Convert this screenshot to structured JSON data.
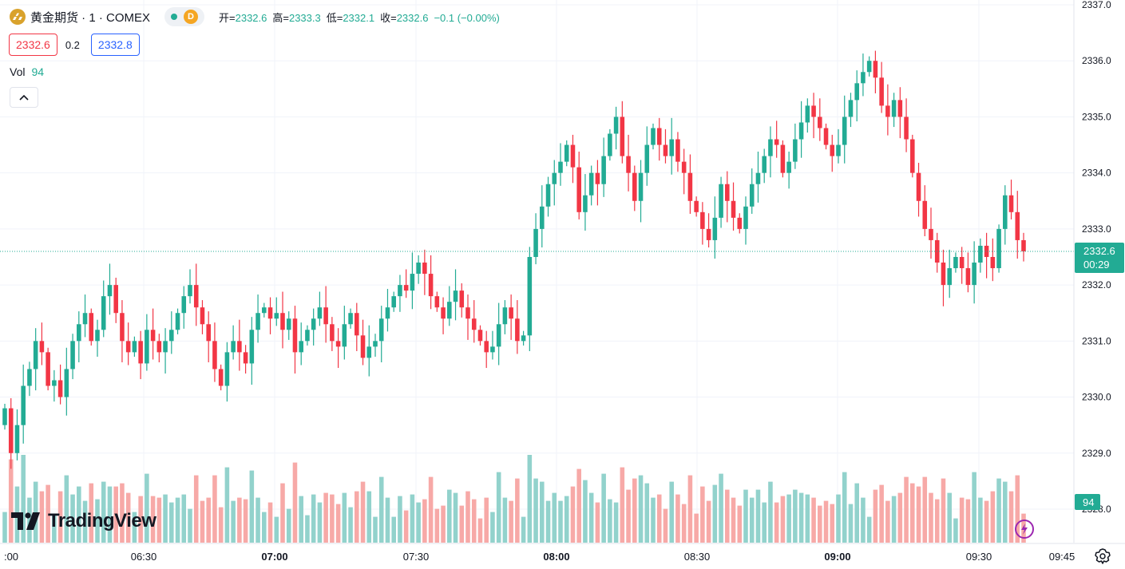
{
  "header": {
    "symbol_title": "黄金期货 · 1 · COMEX",
    "interval_badge": "D",
    "ohlc": [
      {
        "label": "开=",
        "value": "2332.6"
      },
      {
        "label": "高=",
        "value": "2333.3"
      },
      {
        "label": "低=",
        "value": "2332.1"
      },
      {
        "label": "收=",
        "value": "2332.6"
      },
      {
        "label": "",
        "value": "−0.1 (−0.00%)"
      }
    ]
  },
  "prices": {
    "bid": "2332.6",
    "spread": "0.2",
    "ask": "2332.8"
  },
  "volume_legend": {
    "label": "Vol",
    "value": "94"
  },
  "branding": {
    "name": "TradingView"
  },
  "colors": {
    "up": "#22ab94",
    "down": "#f23645",
    "up_volume": "#92d2cc",
    "down_volume": "#f7a9a7",
    "grid": "#f0f3fa",
    "last_price_line": "#22ab94"
  },
  "chart_data": {
    "type": "candlestick",
    "y_axis": {
      "min": 2328.0,
      "max": 2337.0,
      "ticks": [
        "2328.0",
        "2329.0",
        "2330.0",
        "2331.0",
        "2332.0",
        "2333.0",
        "2334.0",
        "2335.0",
        "2336.0",
        "2337.0"
      ]
    },
    "x_axis": {
      "ticks": [
        ":00",
        "06:30",
        "07:00",
        "07:30",
        "08:00",
        "08:30",
        "09:00",
        "09:30",
        "09:45"
      ],
      "bold_ticks": [
        "07:00",
        "08:00",
        "09:00"
      ]
    },
    "last_price": {
      "value": 2332.6,
      "label": "2332.6",
      "countdown": "00:29"
    },
    "last_volume": {
      "value": 94,
      "label": "94"
    },
    "grid": true,
    "close_series": [
      2329.8,
      2329.0,
      2329.5,
      2330.2,
      2330.5,
      2331.0,
      2330.8,
      2330.2,
      2330.3,
      2330.0,
      2330.5,
      2331.0,
      2331.3,
      2331.5,
      2331.0,
      2331.2,
      2331.8,
      2332.0,
      2331.5,
      2331.0,
      2330.8,
      2331.0,
      2330.6,
      2331.2,
      2331.0,
      2330.8,
      2331.0,
      2331.2,
      2331.5,
      2331.8,
      2332.0,
      2331.6,
      2331.3,
      2331.0,
      2330.5,
      2330.2,
      2330.8,
      2331.0,
      2330.8,
      2330.6,
      2331.2,
      2331.5,
      2331.6,
      2331.4,
      2331.5,
      2331.2,
      2331.4,
      2330.8,
      2331.0,
      2331.2,
      2331.4,
      2331.6,
      2331.3,
      2331.0,
      2330.9,
      2331.3,
      2331.5,
      2331.1,
      2330.7,
      2330.9,
      2331.0,
      2331.4,
      2331.6,
      2331.8,
      2332.0,
      2331.9,
      2332.2,
      2332.4,
      2332.2,
      2331.8,
      2331.6,
      2331.4,
      2331.7,
      2331.9,
      2331.6,
      2331.4,
      2331.2,
      2331.0,
      2330.8,
      2330.9,
      2331.3,
      2331.6,
      2331.4,
      2331.0,
      2331.1,
      2332.5,
      2333.0,
      2333.4,
      2333.8,
      2334.0,
      2334.2,
      2334.5,
      2334.1,
      2333.3,
      2333.6,
      2334.0,
      2333.8,
      2334.3,
      2334.7,
      2335.0,
      2334.3,
      2334.0,
      2333.5,
      2334.0,
      2334.5,
      2334.8,
      2334.5,
      2334.3,
      2334.6,
      2334.2,
      2334.0,
      2333.5,
      2333.3,
      2333.0,
      2332.8,
      2333.2,
      2333.8,
      2333.5,
      2333.2,
      2333.0,
      2333.4,
      2333.8,
      2334.0,
      2334.3,
      2334.6,
      2334.5,
      2334.0,
      2334.2,
      2334.6,
      2334.9,
      2335.2,
      2335.0,
      2334.8,
      2334.5,
      2334.3,
      2334.5,
      2335.0,
      2335.3,
      2335.6,
      2335.8,
      2336.0,
      2335.7,
      2335.2,
      2335.0,
      2335.3,
      2335.0,
      2334.6,
      2334.0,
      2333.5,
      2333.0,
      2332.8,
      2332.4,
      2332.0,
      2332.3,
      2332.5,
      2332.3,
      2332.0,
      2332.4,
      2332.7,
      2332.5,
      2332.3,
      2333.0,
      2333.6,
      2333.3,
      2332.8,
      2332.6
    ]
  }
}
